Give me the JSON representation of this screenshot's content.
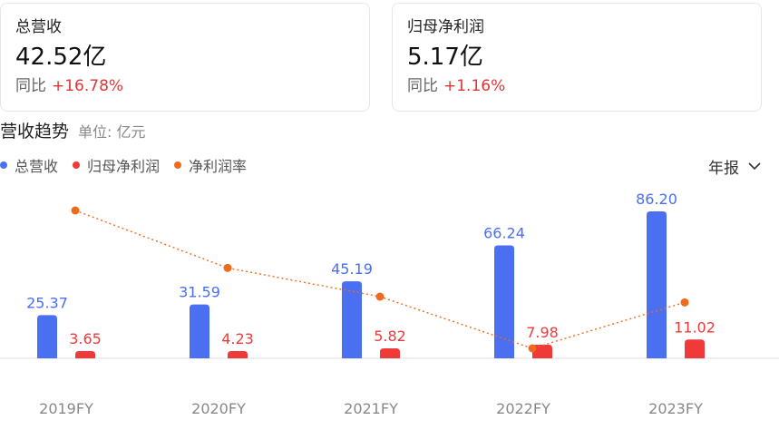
{
  "cards": [
    {
      "title": "总营收",
      "value": "42.52亿",
      "change_label": "同比",
      "change_value": "+16.78%"
    },
    {
      "title": "归母净利润",
      "value": "5.17亿",
      "change_label": "同比",
      "change_value": "+1.16%"
    }
  ],
  "section": {
    "title": "营收趋势",
    "unit": "单位: 亿元"
  },
  "period_select": {
    "value": "年报"
  },
  "colors": {
    "revenue": "#4a6ff0",
    "profit": "#f03a3a",
    "margin": "#f06a1c"
  },
  "chart_data": {
    "type": "bar",
    "categories": [
      "2019FY",
      "2020FY",
      "2021FY",
      "2022FY",
      "2023FY"
    ],
    "series": [
      {
        "name": "总营收",
        "type": "bar",
        "values": [
          25.37,
          31.59,
          45.19,
          66.24,
          86.2
        ],
        "labels": [
          "25.37",
          "31.59",
          "45.19",
          "66.24",
          "86.20"
        ]
      },
      {
        "name": "归母净利润",
        "type": "bar",
        "values": [
          3.65,
          4.23,
          5.82,
          7.98,
          11.02
        ],
        "labels": [
          "3.65",
          "4.23",
          "5.82",
          "7.98",
          "11.02"
        ]
      },
      {
        "name": "净利润率",
        "type": "line",
        "style": "dotted",
        "values": [
          14.4,
          13.4,
          12.9,
          12.0,
          12.8
        ]
      }
    ],
    "legend_position": "top-left",
    "grid": false
  }
}
